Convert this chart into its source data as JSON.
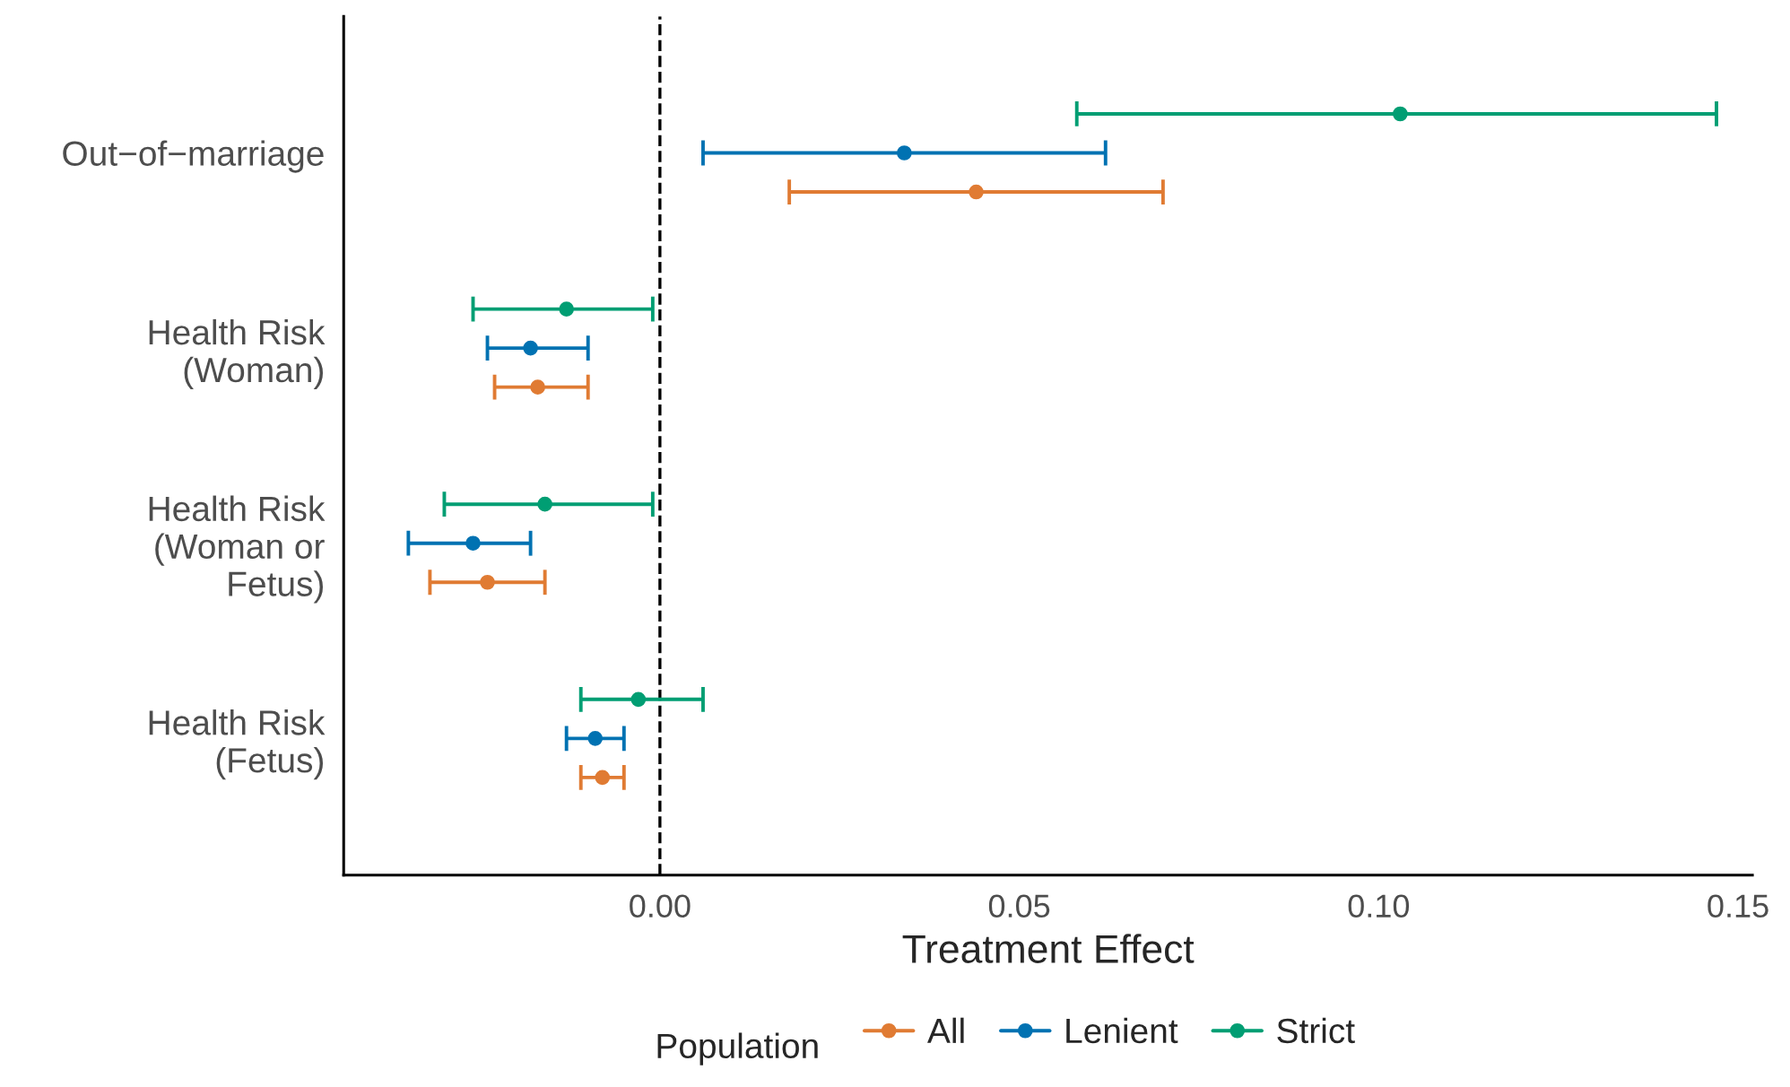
{
  "chart_data": {
    "type": "scatter",
    "orientation": "horizontal",
    "xlabel": "Treatment Effect",
    "legend_title": "Population",
    "legend": "bottom",
    "grid": false,
    "marker": "circle",
    "categories": [
      "Out−of−marriage",
      "Health Risk\n(Woman)",
      "Health Risk\n(Woman or\nFetus)",
      "Health Risk\n(Fetus)"
    ],
    "xlim": [
      -0.044,
      0.152
    ],
    "xticks": [
      {
        "value": 0,
        "label": "0.00"
      },
      {
        "value": 0.05,
        "label": "0.05"
      },
      {
        "value": 0.1,
        "label": "0.10"
      },
      {
        "value": 0.15,
        "label": "0.15"
      }
    ],
    "ref_lines": [
      {
        "axis": "x",
        "value": 0,
        "line_style": "dashed",
        "color": "#000000"
      }
    ],
    "series": [
      {
        "name": "All",
        "color": "#E07B33",
        "values": [
          0.044,
          -0.017,
          -0.024,
          -0.008
        ],
        "errors": [
          [
            0.018,
            0.07
          ],
          [
            -0.023,
            -0.01
          ],
          [
            -0.032,
            -0.016
          ],
          [
            -0.011,
            -0.005
          ]
        ]
      },
      {
        "name": "Lenient",
        "color": "#0072B2",
        "values": [
          0.034,
          -0.018,
          -0.026,
          -0.009
        ],
        "errors": [
          [
            0.006,
            0.062
          ],
          [
            -0.024,
            -0.01
          ],
          [
            -0.035,
            -0.018
          ],
          [
            -0.013,
            -0.005
          ]
        ]
      },
      {
        "name": "Strict",
        "color": "#009E73",
        "values": [
          0.103,
          -0.013,
          -0.016,
          -0.003
        ],
        "errors": [
          [
            0.058,
            0.147
          ],
          [
            -0.026,
            -0.001
          ],
          [
            -0.03,
            -0.001
          ],
          [
            -0.011,
            0.006
          ]
        ]
      }
    ]
  }
}
